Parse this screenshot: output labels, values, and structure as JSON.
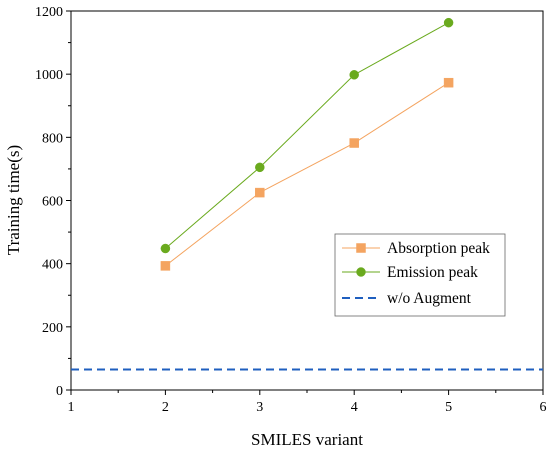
{
  "chart_data": {
    "type": "line",
    "xlabel": "SMILES variant",
    "ylabel": "Training time(s)",
    "xlim": [
      1,
      6
    ],
    "ylim": [
      0,
      1200
    ],
    "xticks": [
      1,
      2,
      3,
      4,
      5,
      6
    ],
    "yticks": [
      0,
      200,
      400,
      600,
      800,
      1000,
      1200
    ],
    "grid": false,
    "legend_position": "center-right",
    "series": [
      {
        "name": "Absorption peak",
        "x": [
          2,
          3,
          4,
          5
        ],
        "y": [
          393,
          625,
          782,
          973
        ],
        "color": "#f4a460",
        "marker": "square",
        "line": "solid"
      },
      {
        "name": "Emission peak",
        "x": [
          2,
          3,
          4,
          5
        ],
        "y": [
          448,
          705,
          998,
          1163
        ],
        "color": "#6aaa1e",
        "marker": "circle",
        "line": "solid"
      },
      {
        "name": "w/o Augment",
        "x": [
          1,
          6
        ],
        "y": [
          65,
          65
        ],
        "color": "#1f5fbf",
        "marker": "none",
        "line": "dashed"
      }
    ]
  }
}
